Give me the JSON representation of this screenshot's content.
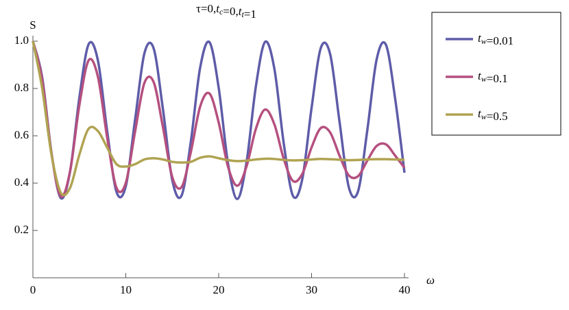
{
  "chart_data": {
    "type": "line",
    "title": "τ=0,tc=0,tt=1",
    "x_label": "ω",
    "y_label": "S",
    "x": [
      0,
      1,
      2,
      3,
      4,
      5,
      6,
      7,
      8,
      9,
      10,
      11,
      12,
      13,
      14,
      15,
      16,
      17,
      18,
      19,
      20,
      21,
      22,
      23,
      24,
      25,
      26,
      27,
      28,
      29,
      30,
      31,
      32,
      33,
      34,
      35,
      36,
      37,
      38,
      39,
      40
    ],
    "series": [
      {
        "name": "tw=0.01",
        "color": "#5e5ca8",
        "values": [
          1.0,
          0.847,
          0.528,
          0.337,
          0.449,
          0.761,
          0.987,
          0.918,
          0.618,
          0.363,
          0.387,
          0.668,
          0.948,
          0.969,
          0.712,
          0.413,
          0.347,
          0.575,
          0.887,
          0.996,
          0.803,
          0.484,
          0.333,
          0.489,
          0.808,
          0.997,
          0.882,
          0.569,
          0.346,
          0.417,
          0.718,
          0.972,
          0.945,
          0.662,
          0.384,
          0.365,
          0.624,
          0.922,
          0.985,
          0.756,
          0.444
        ]
      },
      {
        "name": "tw=0.1",
        "color": "#b5507f",
        "values": [
          1.0,
          0.838,
          0.525,
          0.344,
          0.45,
          0.729,
          0.919,
          0.849,
          0.591,
          0.38,
          0.401,
          0.618,
          0.823,
          0.827,
          0.636,
          0.426,
          0.383,
          0.531,
          0.723,
          0.779,
          0.656,
          0.47,
          0.389,
          0.471,
          0.629,
          0.711,
          0.648,
          0.503,
          0.409,
          0.439,
          0.551,
          0.633,
          0.614,
          0.517,
          0.433,
          0.429,
          0.495,
          0.557,
          0.564,
          0.516,
          0.465
        ]
      },
      {
        "name": "tw=0.5",
        "color": "#b0a352",
        "values": [
          1.0,
          0.8,
          0.52,
          0.36,
          0.38,
          0.52,
          0.63,
          0.62,
          0.55,
          0.48,
          0.47,
          0.48,
          0.5,
          0.505,
          0.5,
          0.49,
          0.487,
          0.49,
          0.507,
          0.513,
          0.505,
          0.497,
          0.493,
          0.495,
          0.5,
          0.503,
          0.502,
          0.498,
          0.496,
          0.497,
          0.5,
          0.502,
          0.501,
          0.499,
          0.497,
          0.498,
          0.5,
          0.501,
          0.501,
          0.5,
          0.499
        ]
      }
    ],
    "xlim": [
      0,
      40
    ],
    "xticks": [
      0,
      10,
      20,
      30,
      40
    ],
    "ylim": [
      0,
      1
    ],
    "yticks": [
      0.2,
      0.4,
      0.6,
      0.8,
      {
        "value": 1,
        "label": "1.0"
      }
    ],
    "legend": "right"
  }
}
